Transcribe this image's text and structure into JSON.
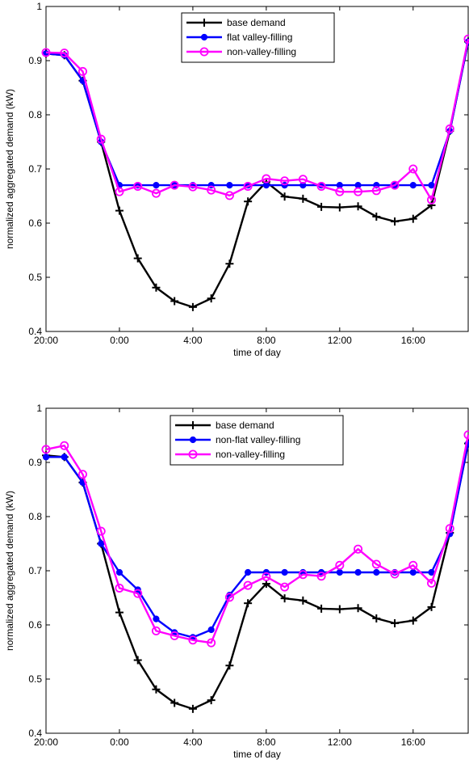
{
  "colors": {
    "base": "#000000",
    "flat": "#0000ff",
    "nonvalley": "#ff00ff"
  },
  "chart_data": [
    {
      "type": "line",
      "xlabel": "time of day",
      "ylabel": "normalized aggregated demand (kW)",
      "xlim": [
        0,
        23
      ],
      "ylim": [
        0.4,
        1.0
      ],
      "x": [
        0,
        1,
        2,
        3,
        4,
        5,
        6,
        7,
        8,
        9,
        10,
        11,
        12,
        13,
        14,
        15,
        16,
        17,
        18,
        19,
        20,
        21,
        22,
        23
      ],
      "xticks": [
        0,
        4,
        8,
        12,
        16,
        20
      ],
      "xticklabels": [
        "20:00",
        "0:00",
        "4:00",
        "8:00",
        "12:00",
        "16:00"
      ],
      "yticks": [
        0.4,
        0.5,
        0.6,
        0.7,
        0.8,
        0.9,
        1.0
      ],
      "yticklabels": [
        "0.4",
        "0.5",
        "0.6",
        "0.7",
        "0.8",
        "0.9",
        "1"
      ],
      "legend_position": "top-center",
      "series": [
        {
          "name": "base demand",
          "marker": "plus",
          "color_key": "base",
          "values": [
            0.913,
            0.91,
            0.863,
            0.75,
            0.623,
            0.535,
            0.481,
            0.456,
            0.445,
            0.461,
            0.525,
            0.64,
            0.676,
            0.649,
            0.645,
            0.63,
            0.629,
            0.631,
            0.612,
            0.603,
            0.608,
            0.633,
            0.77,
            0.935
          ]
        },
        {
          "name": "flat valley-filling",
          "marker": "dot",
          "color_key": "flat",
          "values": [
            0.913,
            0.91,
            0.863,
            0.75,
            0.67,
            0.67,
            0.67,
            0.67,
            0.67,
            0.67,
            0.67,
            0.67,
            0.67,
            0.67,
            0.67,
            0.67,
            0.67,
            0.67,
            0.67,
            0.67,
            0.67,
            0.67,
            0.77,
            0.935
          ]
        },
        {
          "name": "non-valley-filling",
          "marker": "circle",
          "color_key": "nonvalley",
          "values": [
            0.915,
            0.914,
            0.88,
            0.755,
            0.658,
            0.668,
            0.655,
            0.67,
            0.667,
            0.661,
            0.651,
            0.668,
            0.682,
            0.678,
            0.681,
            0.668,
            0.658,
            0.658,
            0.66,
            0.67,
            0.7,
            0.643,
            0.774,
            0.94
          ]
        }
      ]
    },
    {
      "type": "line",
      "xlabel": "time of day",
      "ylabel": "normalized aggregated demand (kW)",
      "xlim": [
        0,
        23
      ],
      "ylim": [
        0.4,
        1.0
      ],
      "x": [
        0,
        1,
        2,
        3,
        4,
        5,
        6,
        7,
        8,
        9,
        10,
        11,
        12,
        13,
        14,
        15,
        16,
        17,
        18,
        19,
        20,
        21,
        22,
        23
      ],
      "xticks": [
        0,
        4,
        8,
        12,
        16,
        20
      ],
      "xticklabels": [
        "20:00",
        "0:00",
        "4:00",
        "8:00",
        "12:00",
        "16:00"
      ],
      "yticks": [
        0.4,
        0.5,
        0.6,
        0.7,
        0.8,
        0.9,
        1.0
      ],
      "yticklabels": [
        "0.4",
        "0.5",
        "0.6",
        "0.7",
        "0.8",
        "0.9",
        "1"
      ],
      "legend_position": "top-center",
      "series": [
        {
          "name": "base demand",
          "marker": "plus",
          "color_key": "base",
          "values": [
            0.913,
            0.91,
            0.863,
            0.75,
            0.623,
            0.535,
            0.481,
            0.456,
            0.445,
            0.461,
            0.525,
            0.64,
            0.676,
            0.649,
            0.645,
            0.63,
            0.629,
            0.631,
            0.612,
            0.603,
            0.608,
            0.633,
            0.77,
            0.935
          ]
        },
        {
          "name": "non-flat valley-filling",
          "marker": "dot",
          "color_key": "flat",
          "values": [
            0.91,
            0.91,
            0.863,
            0.75,
            0.697,
            0.665,
            0.611,
            0.586,
            0.577,
            0.591,
            0.655,
            0.697,
            0.697,
            0.697,
            0.697,
            0.697,
            0.697,
            0.697,
            0.697,
            0.697,
            0.697,
            0.697,
            0.768,
            0.935
          ]
        },
        {
          "name": "non-valley-filling",
          "marker": "circle",
          "color_key": "nonvalley",
          "values": [
            0.924,
            0.931,
            0.878,
            0.773,
            0.668,
            0.658,
            0.589,
            0.58,
            0.572,
            0.567,
            0.651,
            0.673,
            0.689,
            0.67,
            0.693,
            0.69,
            0.71,
            0.74,
            0.712,
            0.694,
            0.71,
            0.677,
            0.778,
            0.951
          ]
        }
      ]
    }
  ]
}
